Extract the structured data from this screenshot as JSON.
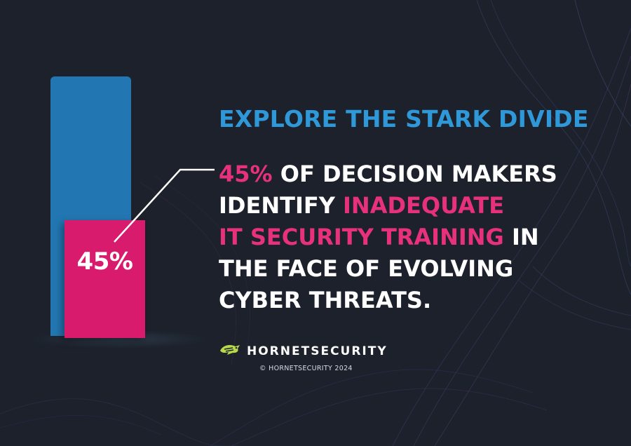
{
  "colors": {
    "background": "#1c212b",
    "bar_blue": "#2277b2",
    "bar_pink": "#d81b6d",
    "headline_blue": "#2e98d8",
    "highlight_pink": "#e8317d",
    "logo_green": "#b6d84a"
  },
  "chart": {
    "value_percent": 45,
    "label": "45%"
  },
  "headline": "EXPLORE THE STARK DIVIDE",
  "statement": {
    "l1_pink": "45%",
    "l1_rest": " OF DECISION MAKERS",
    "l2_white": "IDENTIFY ",
    "l2_pink": "INADEQUATE",
    "l3_pink": "IT SECURITY TRAINING",
    "l3_rest": " IN",
    "l4": "THE FACE OF EVOLVING",
    "l5": "CYBER THREATS."
  },
  "brand": {
    "logo_icon": "hornet-icon",
    "name": "HORNETSECURITY",
    "copyright": "© HORNETSECURITY 2024"
  }
}
